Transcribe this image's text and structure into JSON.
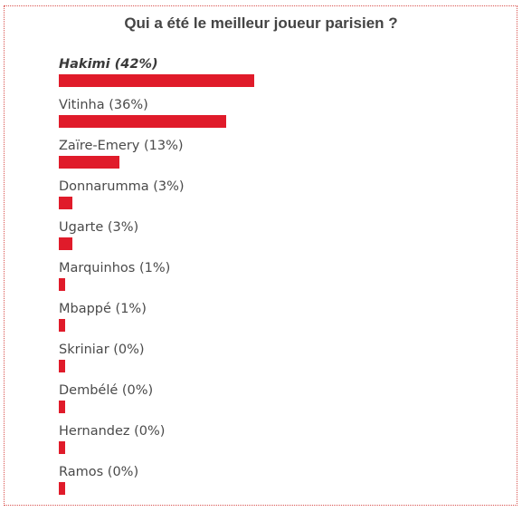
{
  "poll": {
    "title": "Qui a été le meilleur joueur parisien ?",
    "bar_color": "#e01b2a",
    "options": [
      {
        "label": "Hakimi (42%)",
        "percent": 42,
        "winner": true
      },
      {
        "label": "Vitinha (36%)",
        "percent": 36,
        "winner": false
      },
      {
        "label": "Zaïre-Emery (13%)",
        "percent": 13,
        "winner": false
      },
      {
        "label": "Donnarumma (3%)",
        "percent": 3,
        "winner": false
      },
      {
        "label": "Ugarte (3%)",
        "percent": 3,
        "winner": false
      },
      {
        "label": "Marquinhos (1%)",
        "percent": 1,
        "winner": false
      },
      {
        "label": "Mbappé (1%)",
        "percent": 1,
        "winner": false
      },
      {
        "label": "Skriniar (0%)",
        "percent": 0,
        "winner": false
      },
      {
        "label": "Dembélé (0%)",
        "percent": 0,
        "winner": false
      },
      {
        "label": "Hernandez (0%)",
        "percent": 0,
        "winner": false
      },
      {
        "label": "Ramos (0%)",
        "percent": 0,
        "winner": false
      }
    ]
  }
}
